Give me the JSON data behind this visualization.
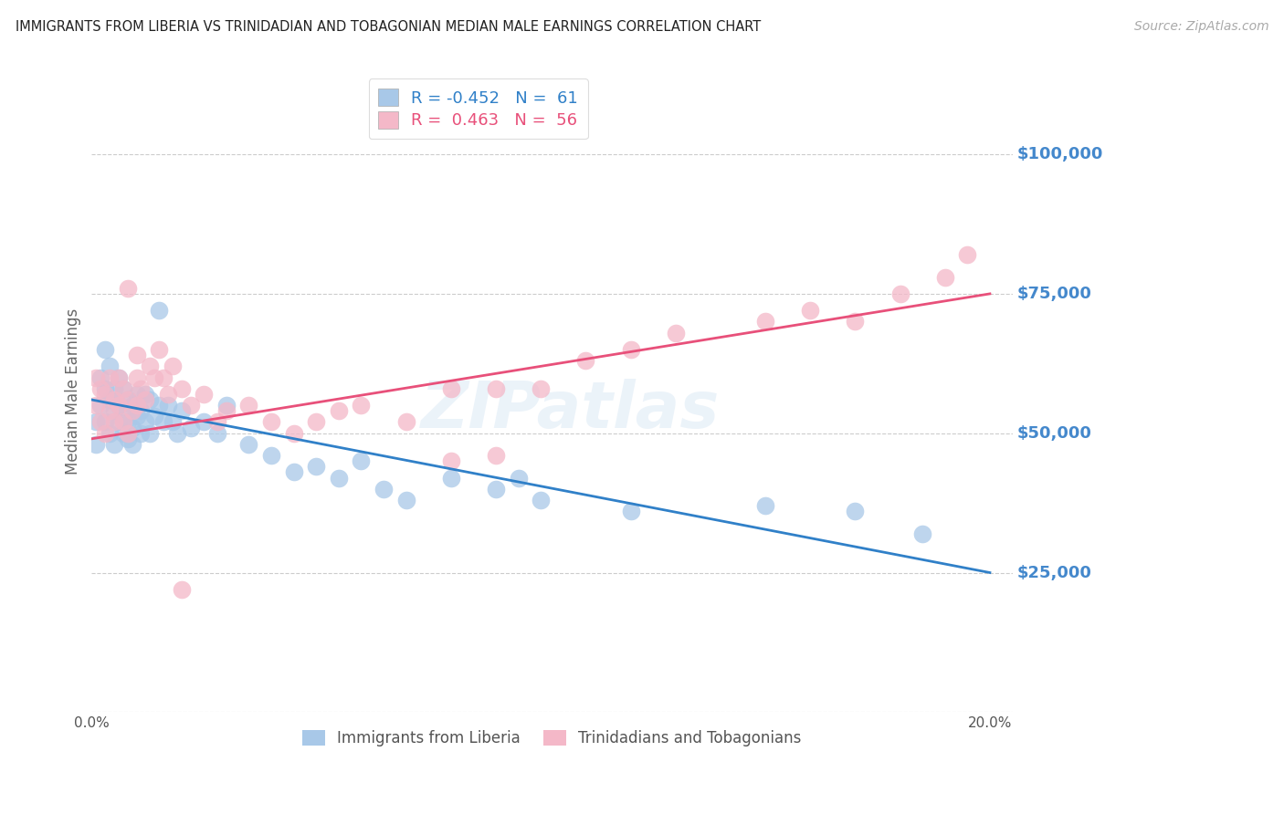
{
  "title": "IMMIGRANTS FROM LIBERIA VS TRINIDADIAN AND TOBAGONIAN MEDIAN MALE EARNINGS CORRELATION CHART",
  "source": "Source: ZipAtlas.com",
  "ylabel": "Median Male Earnings",
  "xlim": [
    0.0,
    0.205
  ],
  "ylim": [
    0,
    115000
  ],
  "yticks": [
    0,
    25000,
    50000,
    75000,
    100000
  ],
  "ytick_labels": [
    "",
    "$25,000",
    "$50,000",
    "$75,000",
    "$100,000"
  ],
  "blue_color": "#a8c8e8",
  "pink_color": "#f4b8c8",
  "blue_line_color": "#3080c8",
  "pink_line_color": "#e8507a",
  "axis_color": "#4488cc",
  "title_color": "#222222",
  "legend_line1": "R = -0.452   N =  61",
  "legend_line2": "R =  0.463   N =  56",
  "watermark": "ZIPatlas",
  "background_color": "#ffffff",
  "grid_color": "#cccccc",
  "blue_line_x0": 0.0,
  "blue_line_y0": 56000,
  "blue_line_x1": 0.2,
  "blue_line_y1": 25000,
  "pink_line_x0": 0.0,
  "pink_line_y0": 49000,
  "pink_line_x1": 0.2,
  "pink_line_y1": 75000,
  "blue_scatter_x": [
    0.001,
    0.001,
    0.002,
    0.002,
    0.003,
    0.003,
    0.003,
    0.004,
    0.004,
    0.004,
    0.005,
    0.005,
    0.005,
    0.006,
    0.006,
    0.006,
    0.007,
    0.007,
    0.007,
    0.008,
    0.008,
    0.008,
    0.009,
    0.009,
    0.009,
    0.01,
    0.01,
    0.011,
    0.011,
    0.012,
    0.012,
    0.013,
    0.013,
    0.014,
    0.015,
    0.015,
    0.016,
    0.017,
    0.018,
    0.019,
    0.02,
    0.022,
    0.025,
    0.028,
    0.03,
    0.035,
    0.04,
    0.045,
    0.05,
    0.055,
    0.06,
    0.065,
    0.07,
    0.08,
    0.09,
    0.095,
    0.1,
    0.12,
    0.15,
    0.17,
    0.185
  ],
  "blue_scatter_y": [
    52000,
    48000,
    60000,
    55000,
    65000,
    58000,
    52000,
    56000,
    50000,
    62000,
    58000,
    54000,
    48000,
    60000,
    55000,
    52000,
    58000,
    53000,
    50000,
    56000,
    52000,
    49000,
    55000,
    51000,
    48000,
    57000,
    53000,
    54000,
    50000,
    57000,
    52000,
    56000,
    50000,
    53000,
    72000,
    55000,
    52000,
    55000,
    52000,
    50000,
    54000,
    51000,
    52000,
    50000,
    55000,
    48000,
    46000,
    43000,
    44000,
    42000,
    45000,
    40000,
    38000,
    42000,
    40000,
    42000,
    38000,
    36000,
    37000,
    36000,
    32000
  ],
  "pink_scatter_x": [
    0.001,
    0.001,
    0.002,
    0.002,
    0.003,
    0.003,
    0.004,
    0.004,
    0.005,
    0.005,
    0.006,
    0.006,
    0.007,
    0.007,
    0.008,
    0.008,
    0.009,
    0.01,
    0.01,
    0.011,
    0.012,
    0.013,
    0.014,
    0.015,
    0.016,
    0.017,
    0.018,
    0.02,
    0.022,
    0.025,
    0.028,
    0.03,
    0.035,
    0.04,
    0.045,
    0.05,
    0.055,
    0.06,
    0.07,
    0.08,
    0.09,
    0.1,
    0.11,
    0.12,
    0.08,
    0.09,
    0.13,
    0.15,
    0.16,
    0.17,
    0.18,
    0.19,
    0.195,
    0.01,
    0.008,
    0.02
  ],
  "pink_scatter_y": [
    60000,
    55000,
    58000,
    52000,
    57000,
    50000,
    60000,
    54000,
    56000,
    52000,
    60000,
    55000,
    58000,
    52000,
    56000,
    50000,
    54000,
    60000,
    55000,
    58000,
    56000,
    62000,
    60000,
    65000,
    60000,
    57000,
    62000,
    58000,
    55000,
    57000,
    52000,
    54000,
    55000,
    52000,
    50000,
    52000,
    54000,
    55000,
    52000,
    58000,
    58000,
    58000,
    63000,
    65000,
    45000,
    46000,
    68000,
    70000,
    72000,
    70000,
    75000,
    78000,
    82000,
    64000,
    76000,
    22000
  ]
}
